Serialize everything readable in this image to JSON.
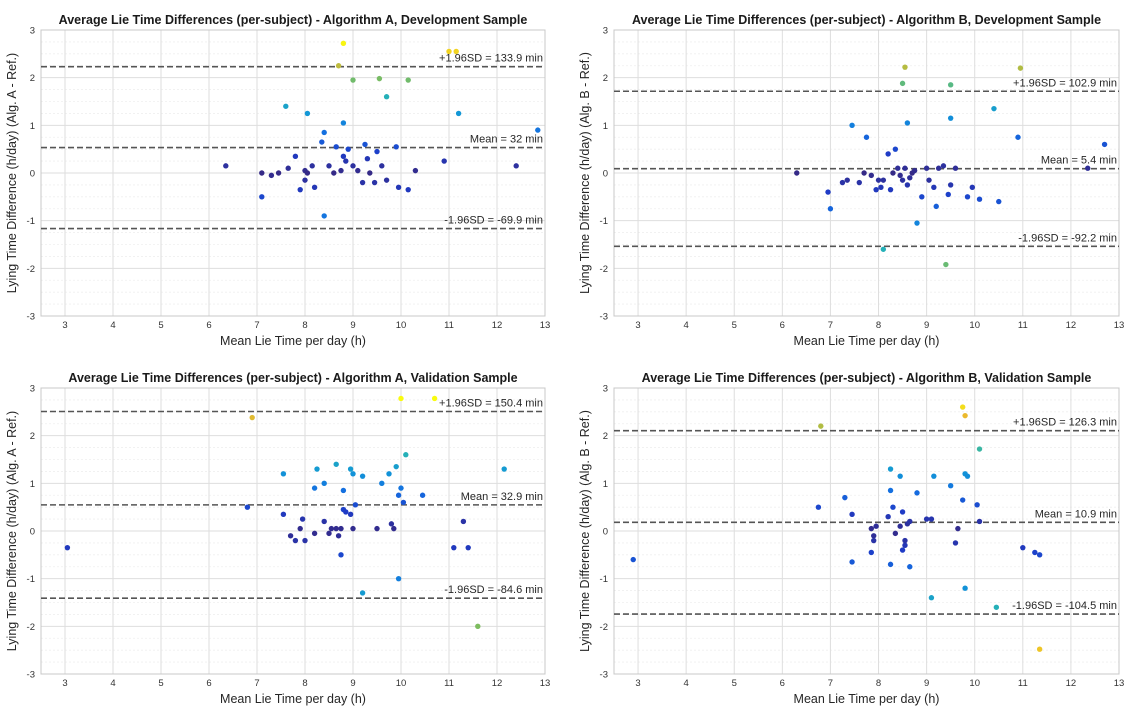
{
  "chart_data": [
    {
      "type": "scatter",
      "title": "Average Lie Time Differences (per-subject) - Algorithm A, Development Sample",
      "xlabel": "Mean Lie Time per day (h)",
      "ylabel": "Lying Time Difference (h/day) (Alg. A - Ref.)",
      "xlim": [
        2.5,
        13
      ],
      "ylim": [
        -3,
        3
      ],
      "grid": true,
      "xticks": [
        "3",
        "4",
        "5",
        "6",
        "7",
        "8",
        "9",
        "10",
        "11",
        "12",
        "13"
      ],
      "yticks": [
        "-3",
        "-2",
        "-1",
        "0",
        "1",
        "2",
        "3"
      ],
      "lines": [
        {
          "y": 2.23,
          "label": "+1.96SD = 133.9 min"
        },
        {
          "y": 0.533,
          "label": "Mean = 32 min"
        },
        {
          "y": -1.165,
          "label": "-1.96SD = -69.9 min"
        }
      ],
      "points": [
        [
          6.35,
          0.15
        ],
        [
          7.1,
          -0.5
        ],
        [
          7.1,
          0
        ],
        [
          7.3,
          -0.05
        ],
        [
          7.45,
          0
        ],
        [
          7.65,
          0.1
        ],
        [
          7.8,
          0.35
        ],
        [
          7.9,
          -0.35
        ],
        [
          8.0,
          0.05
        ],
        [
          8.0,
          -0.15
        ],
        [
          8.05,
          0
        ],
        [
          8.15,
          0.15
        ],
        [
          8.2,
          -0.3
        ],
        [
          8.35,
          0.65
        ],
        [
          8.4,
          0.85
        ],
        [
          8.4,
          -0.9
        ],
        [
          8.5,
          0.15
        ],
        [
          8.6,
          0
        ],
        [
          8.65,
          0.55
        ],
        [
          8.75,
          0.05
        ],
        [
          8.8,
          0.35
        ],
        [
          8.85,
          0.25
        ],
        [
          8.9,
          0.5
        ],
        [
          9.0,
          0.15
        ],
        [
          9.1,
          0.05
        ],
        [
          9.2,
          -0.2
        ],
        [
          9.25,
          0.6
        ],
        [
          9.3,
          0.3
        ],
        [
          9.35,
          0
        ],
        [
          9.45,
          -0.2
        ],
        [
          9.5,
          0.45
        ],
        [
          9.6,
          0.15
        ],
        [
          9.7,
          -0.15
        ],
        [
          9.9,
          0.55
        ],
        [
          9.95,
          -0.3
        ],
        [
          10.15,
          -0.35
        ],
        [
          10.3,
          0.05
        ],
        [
          10.9,
          0.25
        ],
        [
          12.4,
          0.15
        ],
        [
          12.85,
          0.9
        ],
        [
          8.8,
          1.05
        ],
        [
          7.6,
          1.4
        ],
        [
          8.05,
          1.25
        ],
        [
          11.2,
          1.25
        ],
        [
          9.0,
          1.95
        ],
        [
          9.55,
          1.98
        ],
        [
          10.15,
          1.95
        ],
        [
          9.7,
          1.6
        ],
        [
          8.7,
          2.25
        ],
        [
          8.8,
          2.72
        ],
        [
          11.0,
          2.55
        ],
        [
          11.15,
          2.55
        ]
      ]
    },
    {
      "type": "scatter",
      "title": "Average Lie Time Differences (per-subject) - Algorithm B, Development Sample",
      "xlabel": "Mean Lie Time per day (h)",
      "ylabel": "Lying Time Difference (h/day) (Alg. B - Ref.)",
      "xlim": [
        2.5,
        13
      ],
      "ylim": [
        -3,
        3
      ],
      "grid": true,
      "xticks": [
        "3",
        "4",
        "5",
        "6",
        "7",
        "8",
        "9",
        "10",
        "11",
        "12",
        "13"
      ],
      "yticks": [
        "-3",
        "-2",
        "-1",
        "0",
        "1",
        "2",
        "3"
      ],
      "lines": [
        {
          "y": 1.715,
          "label": "+1.96SD = 102.9 min"
        },
        {
          "y": 0.09,
          "label": "Mean = 5.4 min"
        },
        {
          "y": -1.537,
          "label": "-1.96SD = -92.2 min"
        }
      ],
      "points": [
        [
          6.3,
          0
        ],
        [
          6.95,
          -0.4
        ],
        [
          7.0,
          -0.75
        ],
        [
          7.25,
          -0.2
        ],
        [
          7.35,
          -0.15
        ],
        [
          7.6,
          -0.2
        ],
        [
          7.7,
          0
        ],
        [
          7.85,
          -0.05
        ],
        [
          7.95,
          -0.35
        ],
        [
          8.0,
          -0.15
        ],
        [
          8.05,
          -0.3
        ],
        [
          8.1,
          -0.15
        ],
        [
          8.2,
          0.4
        ],
        [
          8.25,
          -0.35
        ],
        [
          8.3,
          0
        ],
        [
          8.35,
          0.5
        ],
        [
          8.4,
          0.1
        ],
        [
          8.45,
          -0.05
        ],
        [
          8.5,
          -0.15
        ],
        [
          8.55,
          0.1
        ],
        [
          8.6,
          -0.25
        ],
        [
          8.65,
          -0.1
        ],
        [
          8.7,
          0
        ],
        [
          8.75,
          0.05
        ],
        [
          8.9,
          -0.5
        ],
        [
          9.0,
          0.1
        ],
        [
          9.05,
          -0.15
        ],
        [
          9.15,
          -0.3
        ],
        [
          9.2,
          -0.7
        ],
        [
          9.25,
          0.1
        ],
        [
          9.35,
          0.15
        ],
        [
          9.45,
          -0.45
        ],
        [
          9.5,
          -0.25
        ],
        [
          9.6,
          0.1
        ],
        [
          9.85,
          -0.5
        ],
        [
          9.95,
          -0.3
        ],
        [
          10.1,
          -0.55
        ],
        [
          10.5,
          -0.6
        ],
        [
          12.35,
          0.1
        ],
        [
          7.45,
          1.0
        ],
        [
          7.75,
          0.75
        ],
        [
          8.6,
          1.05
        ],
        [
          9.5,
          1.15
        ],
        [
          10.9,
          0.75
        ],
        [
          12.7,
          0.6
        ],
        [
          8.8,
          -1.05
        ],
        [
          8.1,
          -1.6
        ],
        [
          10.4,
          1.35
        ],
        [
          8.5,
          1.88
        ],
        [
          8.55,
          2.22
        ],
        [
          9.5,
          1.85
        ],
        [
          10.95,
          2.2
        ],
        [
          9.4,
          -1.92
        ]
      ]
    },
    {
      "type": "scatter",
      "title": "Average Lie Time Differences (per-subject) - Algorithm A, Validation Sample",
      "xlabel": "Mean Lie Time per day (h)",
      "ylabel": "Lying Time Difference (h/day) (Alg. A - Ref.)",
      "xlim": [
        2.5,
        13
      ],
      "ylim": [
        -3,
        3
      ],
      "grid": true,
      "xticks": [
        "3",
        "4",
        "5",
        "6",
        "7",
        "8",
        "9",
        "10",
        "11",
        "12",
        "13"
      ],
      "yticks": [
        "-3",
        "-2",
        "-1",
        "0",
        "1",
        "2",
        "3"
      ],
      "lines": [
        {
          "y": 2.507,
          "label": "+1.96SD = 150.4 min"
        },
        {
          "y": 0.548,
          "label": "Mean = 32.9 min"
        },
        {
          "y": -1.41,
          "label": "-1.96SD = -84.6 min"
        }
      ],
      "points": [
        [
          3.05,
          -0.35
        ],
        [
          6.8,
          0.5
        ],
        [
          7.55,
          0.35
        ],
        [
          7.7,
          -0.1
        ],
        [
          7.8,
          -0.2
        ],
        [
          7.9,
          0.05
        ],
        [
          7.95,
          0.25
        ],
        [
          8.0,
          -0.2
        ],
        [
          8.2,
          -0.05
        ],
        [
          8.4,
          0.2
        ],
        [
          8.5,
          -0.05
        ],
        [
          8.55,
          0.05
        ],
        [
          8.65,
          0.05
        ],
        [
          8.7,
          -0.1
        ],
        [
          8.75,
          0.05
        ],
        [
          8.8,
          0.45
        ],
        [
          8.85,
          0.4
        ],
        [
          8.95,
          0.35
        ],
        [
          9.0,
          0.05
        ],
        [
          9.05,
          0.55
        ],
        [
          9.5,
          0.05
        ],
        [
          9.8,
          0.15
        ],
        [
          9.85,
          0.05
        ],
        [
          9.95,
          0.75
        ],
        [
          10.05,
          0.6
        ],
        [
          10.45,
          0.75
        ],
        [
          11.1,
          -0.35
        ],
        [
          11.3,
          0.2
        ],
        [
          11.4,
          -0.35
        ],
        [
          8.75,
          -0.5
        ],
        [
          7.55,
          1.2
        ],
        [
          8.2,
          0.9
        ],
        [
          8.25,
          1.3
        ],
        [
          8.4,
          1.0
        ],
        [
          8.65,
          1.4
        ],
        [
          8.8,
          0.85
        ],
        [
          8.95,
          1.3
        ],
        [
          9.0,
          1.2
        ],
        [
          9.2,
          1.15
        ],
        [
          9.6,
          1.0
        ],
        [
          9.75,
          1.2
        ],
        [
          9.9,
          1.35
        ],
        [
          10.0,
          0.9
        ],
        [
          10.1,
          1.6
        ],
        [
          12.15,
          1.3
        ],
        [
          9.95,
          -1.0
        ],
        [
          9.2,
          -1.3
        ],
        [
          11.6,
          -2.0
        ],
        [
          6.9,
          2.38
        ],
        [
          10.0,
          2.78
        ],
        [
          10.7,
          2.78
        ]
      ]
    },
    {
      "type": "scatter",
      "title": "Average Lie Time Differences (per-subject) - Algorithm B, Validation Sample",
      "xlabel": "Mean Lie Time per day (h)",
      "ylabel": "Lying Time Difference (h/day) (Alg. B - Ref.)",
      "xlim": [
        2.5,
        13
      ],
      "ylim": [
        -3,
        3
      ],
      "grid": true,
      "xticks": [
        "3",
        "4",
        "5",
        "6",
        "7",
        "8",
        "9",
        "10",
        "11",
        "12",
        "13"
      ],
      "yticks": [
        "-3",
        "-2",
        "-1",
        "0",
        "1",
        "2",
        "3"
      ],
      "lines": [
        {
          "y": 2.105,
          "label": "+1.96SD = 126.3 min"
        },
        {
          "y": 0.182,
          "label": "Mean = 10.9 min"
        },
        {
          "y": -1.742,
          "label": "-1.96SD = -104.5 min"
        }
      ],
      "points": [
        [
          2.9,
          -0.6
        ],
        [
          6.75,
          0.5
        ],
        [
          7.3,
          0.7
        ],
        [
          7.45,
          0.35
        ],
        [
          7.45,
          -0.65
        ],
        [
          7.85,
          0.05
        ],
        [
          7.9,
          -0.1
        ],
        [
          7.9,
          -0.2
        ],
        [
          7.95,
          0.1
        ],
        [
          8.2,
          0.3
        ],
        [
          8.25,
          -0.7
        ],
        [
          8.3,
          0.5
        ],
        [
          8.35,
          -0.05
        ],
        [
          8.45,
          0.1
        ],
        [
          8.5,
          -0.4
        ],
        [
          8.55,
          -0.3
        ],
        [
          8.55,
          -0.2
        ],
        [
          8.6,
          0.15
        ],
        [
          8.65,
          0.2
        ],
        [
          8.65,
          -0.75
        ],
        [
          8.8,
          0.8
        ],
        [
          9.0,
          0.25
        ],
        [
          9.1,
          0.25
        ],
        [
          9.5,
          0.95
        ],
        [
          9.6,
          -0.25
        ],
        [
          9.65,
          0.05
        ],
        [
          9.75,
          0.65
        ],
        [
          10.05,
          0.55
        ],
        [
          10.1,
          0.2
        ],
        [
          11.0,
          -0.35
        ],
        [
          11.25,
          -0.45
        ],
        [
          11.35,
          -0.5
        ],
        [
          7.85,
          -0.45
        ],
        [
          8.25,
          0.85
        ],
        [
          8.5,
          0.4
        ],
        [
          8.25,
          1.3
        ],
        [
          8.45,
          1.15
        ],
        [
          9.15,
          1.15
        ],
        [
          9.8,
          1.2
        ],
        [
          9.85,
          1.15
        ],
        [
          9.8,
          -1.2
        ],
        [
          9.1,
          -1.4
        ],
        [
          10.45,
          -1.6
        ],
        [
          10.1,
          1.72
        ],
        [
          6.8,
          2.2
        ],
        [
          9.75,
          2.6
        ],
        [
          9.8,
          2.42
        ],
        [
          11.35,
          -2.48
        ]
      ]
    }
  ]
}
